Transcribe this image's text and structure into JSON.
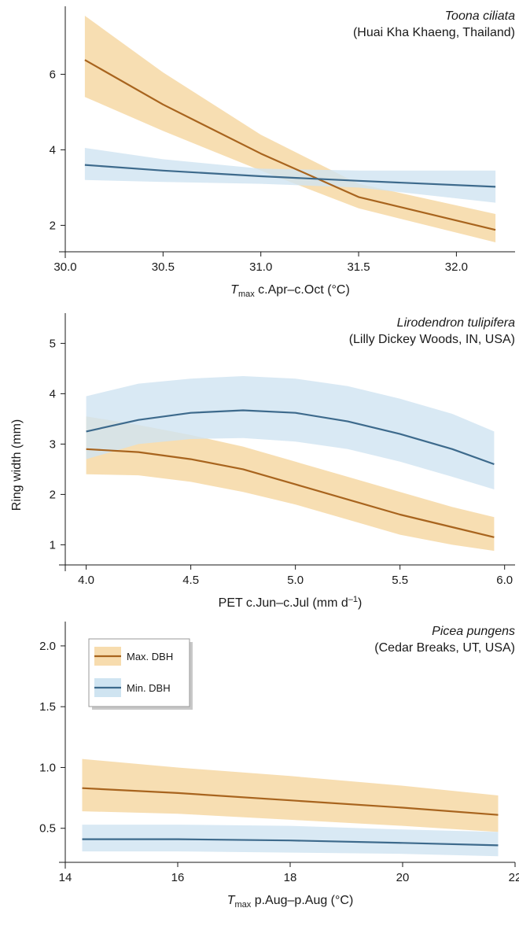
{
  "figure": {
    "ylabel": "Ring width (mm)",
    "colors": {
      "max_line": "#a8641e",
      "max_band": "#f7dcae",
      "min_line": "#3d6a8c",
      "min_band": "#cfe4f1"
    }
  },
  "legend": {
    "items": [
      {
        "label": "Max. DBH",
        "series": "max"
      },
      {
        "label": "Min. DBH",
        "series": "min"
      }
    ]
  },
  "chart_data": [
    {
      "type": "line",
      "title": "Toona ciliata",
      "subtitle": "(Huai Kha Khaeng, Thailand)",
      "xlabel_main": "T",
      "xlabel_sub": "max",
      "xlabel_rest": " c.Apr–c.Oct (°C)",
      "xlim": [
        30.0,
        32.3
      ],
      "ylim": [
        1.3,
        7.8
      ],
      "xticks": [
        30.0,
        30.5,
        31.0,
        31.5,
        32.0
      ],
      "xtick_labels": [
        "30.0",
        "30.5",
        "31.0",
        "31.5",
        "32.0"
      ],
      "yticks": [
        2,
        4,
        6
      ],
      "ytick_labels": [
        "2",
        "4",
        "6"
      ],
      "x": [
        30.1,
        30.5,
        31.0,
        31.5,
        32.2
      ],
      "series": [
        {
          "name": "Max. DBH",
          "key": "max",
          "values": [
            6.38,
            5.2,
            3.9,
            2.75,
            1.88
          ],
          "lower": [
            5.4,
            4.5,
            3.45,
            2.45,
            1.55
          ],
          "upper": [
            7.55,
            6.05,
            4.4,
            3.1,
            2.3
          ]
        },
        {
          "name": "Min. DBH",
          "key": "min",
          "values": [
            3.6,
            3.45,
            3.3,
            3.18,
            3.02
          ],
          "lower": [
            3.2,
            3.15,
            3.1,
            3.0,
            2.6
          ],
          "upper": [
            4.05,
            3.75,
            3.5,
            3.45,
            3.45
          ]
        }
      ]
    },
    {
      "type": "line",
      "title": "Lirodendron tulipifera",
      "subtitle": "(Lilly Dickey Woods, IN, USA)",
      "xlabel_main": "PET c.Jun–c.Jul (mm d",
      "xlabel_sup": "–1",
      "xlabel_close": ")",
      "xlim": [
        3.9,
        6.05
      ],
      "ylim": [
        0.6,
        5.6
      ],
      "xticks": [
        4.0,
        4.5,
        5.0,
        5.5,
        6.0
      ],
      "xtick_labels": [
        "4.0",
        "4.5",
        "5.0",
        "5.5",
        "6.0"
      ],
      "yticks": [
        1,
        2,
        3,
        4,
        5
      ],
      "ytick_labels": [
        "1",
        "2",
        "3",
        "4",
        "5"
      ],
      "x": [
        4.0,
        4.25,
        4.5,
        4.75,
        5.0,
        5.25,
        5.5,
        5.75,
        5.95
      ],
      "series": [
        {
          "name": "Max. DBH",
          "key": "max",
          "values": [
            2.9,
            2.84,
            2.7,
            2.5,
            2.2,
            1.9,
            1.6,
            1.35,
            1.15
          ],
          "lower": [
            2.4,
            2.38,
            2.25,
            2.05,
            1.8,
            1.5,
            1.2,
            1.0,
            0.88
          ],
          "upper": [
            3.55,
            3.38,
            3.18,
            2.95,
            2.65,
            2.35,
            2.05,
            1.75,
            1.55
          ]
        },
        {
          "name": "Min. DBH",
          "key": "min",
          "values": [
            3.25,
            3.48,
            3.62,
            3.67,
            3.62,
            3.45,
            3.2,
            2.9,
            2.6
          ],
          "lower": [
            2.7,
            3.0,
            3.1,
            3.12,
            3.05,
            2.9,
            2.65,
            2.35,
            2.1
          ],
          "upper": [
            3.95,
            4.2,
            4.3,
            4.35,
            4.3,
            4.15,
            3.9,
            3.6,
            3.25
          ]
        }
      ]
    },
    {
      "type": "line",
      "title": "Picea pungens",
      "subtitle": "(Cedar Breaks, UT, USA)",
      "xlabel_main": "T",
      "xlabel_sub": "max",
      "xlabel_rest": " p.Aug–p.Aug (°C)",
      "xlim": [
        14.0,
        22.0
      ],
      "ylim": [
        0.22,
        2.2
      ],
      "xticks": [
        14,
        16,
        18,
        20,
        22
      ],
      "xtick_labels": [
        "14",
        "16",
        "18",
        "20",
        "22"
      ],
      "yticks": [
        0.5,
        1.0,
        1.5,
        2.0
      ],
      "ytick_labels": [
        "0.5",
        "1.0",
        "1.5",
        "2.0"
      ],
      "x": [
        14.3,
        16.0,
        18.0,
        20.0,
        21.7
      ],
      "series": [
        {
          "name": "Max. DBH",
          "key": "max",
          "values": [
            0.83,
            0.79,
            0.73,
            0.67,
            0.61
          ],
          "lower": [
            0.64,
            0.62,
            0.57,
            0.52,
            0.47
          ],
          "upper": [
            1.07,
            1.0,
            0.93,
            0.85,
            0.77
          ]
        },
        {
          "name": "Min. DBH",
          "key": "min",
          "values": [
            0.41,
            0.41,
            0.4,
            0.38,
            0.36
          ],
          "lower": [
            0.31,
            0.31,
            0.3,
            0.29,
            0.27
          ],
          "upper": [
            0.53,
            0.53,
            0.52,
            0.49,
            0.47
          ]
        }
      ]
    }
  ]
}
